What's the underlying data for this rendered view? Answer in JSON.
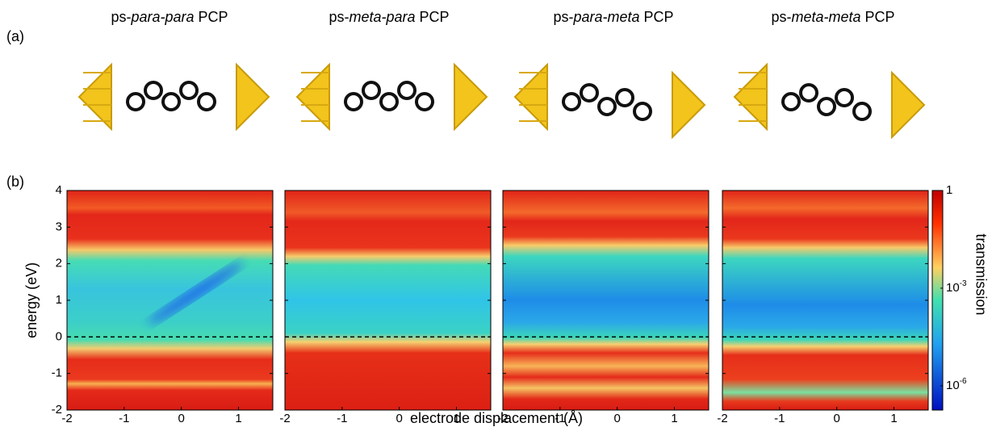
{
  "panel_labels": [
    "(a)",
    "(b)"
  ],
  "molecules": [
    {
      "prefix": "ps-",
      "isomer": "para-para",
      "suffix": "PCP"
    },
    {
      "prefix": "ps-",
      "isomer": "meta-para",
      "suffix": "PCP"
    },
    {
      "prefix": "ps-",
      "isomer": "para-meta",
      "suffix": "PCP"
    },
    {
      "prefix": "ps-",
      "isomer": "meta-meta",
      "suffix": "PCP"
    }
  ],
  "shared": {
    "xlabel": "electrode displacement (Å)",
    "ylabel": "energy (eV)"
  },
  "colorbar": {
    "label": "transmission",
    "scale": "log",
    "lim": [
      1.8e-07,
      1
    ],
    "ticks": [
      {
        "value": 1,
        "label": "1"
      },
      {
        "value": 0.001,
        "label": "10",
        "exponent": "-3"
      },
      {
        "value": 1e-06,
        "label": "10",
        "exponent": "-6"
      }
    ]
  },
  "chart_data": [
    {
      "type": "heatmap",
      "xlim": [
        -2,
        1.6
      ],
      "xticks": [
        -2,
        -1,
        0,
        1
      ],
      "ylim": [
        -2,
        4
      ],
      "yticks": [
        -2,
        -1,
        0,
        1,
        2,
        3,
        4
      ],
      "hline": 0
    },
    {
      "type": "heatmap",
      "xlim": [
        -2,
        1.6
      ],
      "xticks": [
        -2,
        -1,
        0,
        1
      ],
      "ylim": [
        -2,
        4
      ],
      "yticks": [
        -2,
        -1,
        0,
        1,
        2,
        3,
        4
      ],
      "hline": 0
    },
    {
      "type": "heatmap",
      "xlim": [
        -2,
        1.6
      ],
      "xticks": [
        -2,
        -1,
        0,
        1
      ],
      "ylim": [
        -2,
        4
      ],
      "yticks": [
        -2,
        -1,
        0,
        1,
        2,
        3,
        4
      ],
      "hline": 0
    },
    {
      "type": "heatmap",
      "xlim": [
        -2,
        1.6
      ],
      "xticks": [
        -2,
        -1,
        0,
        1
      ],
      "ylim": [
        -2,
        4
      ],
      "yticks": [
        -2,
        -1,
        0,
        1,
        2,
        3,
        4
      ],
      "hline": 0
    }
  ]
}
